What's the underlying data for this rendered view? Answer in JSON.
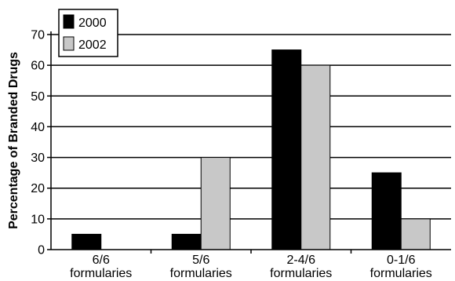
{
  "chart_data": {
    "type": "bar",
    "title": "",
    "xlabel": "",
    "ylabel": "Percentage of Branded Drugs",
    "ylim": [
      0,
      70
    ],
    "yticks": [
      0,
      10,
      20,
      30,
      40,
      50,
      60,
      70
    ],
    "grid": true,
    "legend_position": "top-left",
    "categories": [
      [
        "6/6",
        "formularies"
      ],
      [
        "5/6",
        "formularies"
      ],
      [
        "2-4/6",
        "formularies"
      ],
      [
        "0-1/6",
        "formularies"
      ]
    ],
    "series": [
      {
        "name": "2000",
        "values": [
          5,
          5,
          65,
          25
        ],
        "color": "#000000"
      },
      {
        "name": "2002",
        "values": [
          0,
          30,
          60,
          10
        ],
        "color": "#c8c8c8"
      }
    ]
  }
}
